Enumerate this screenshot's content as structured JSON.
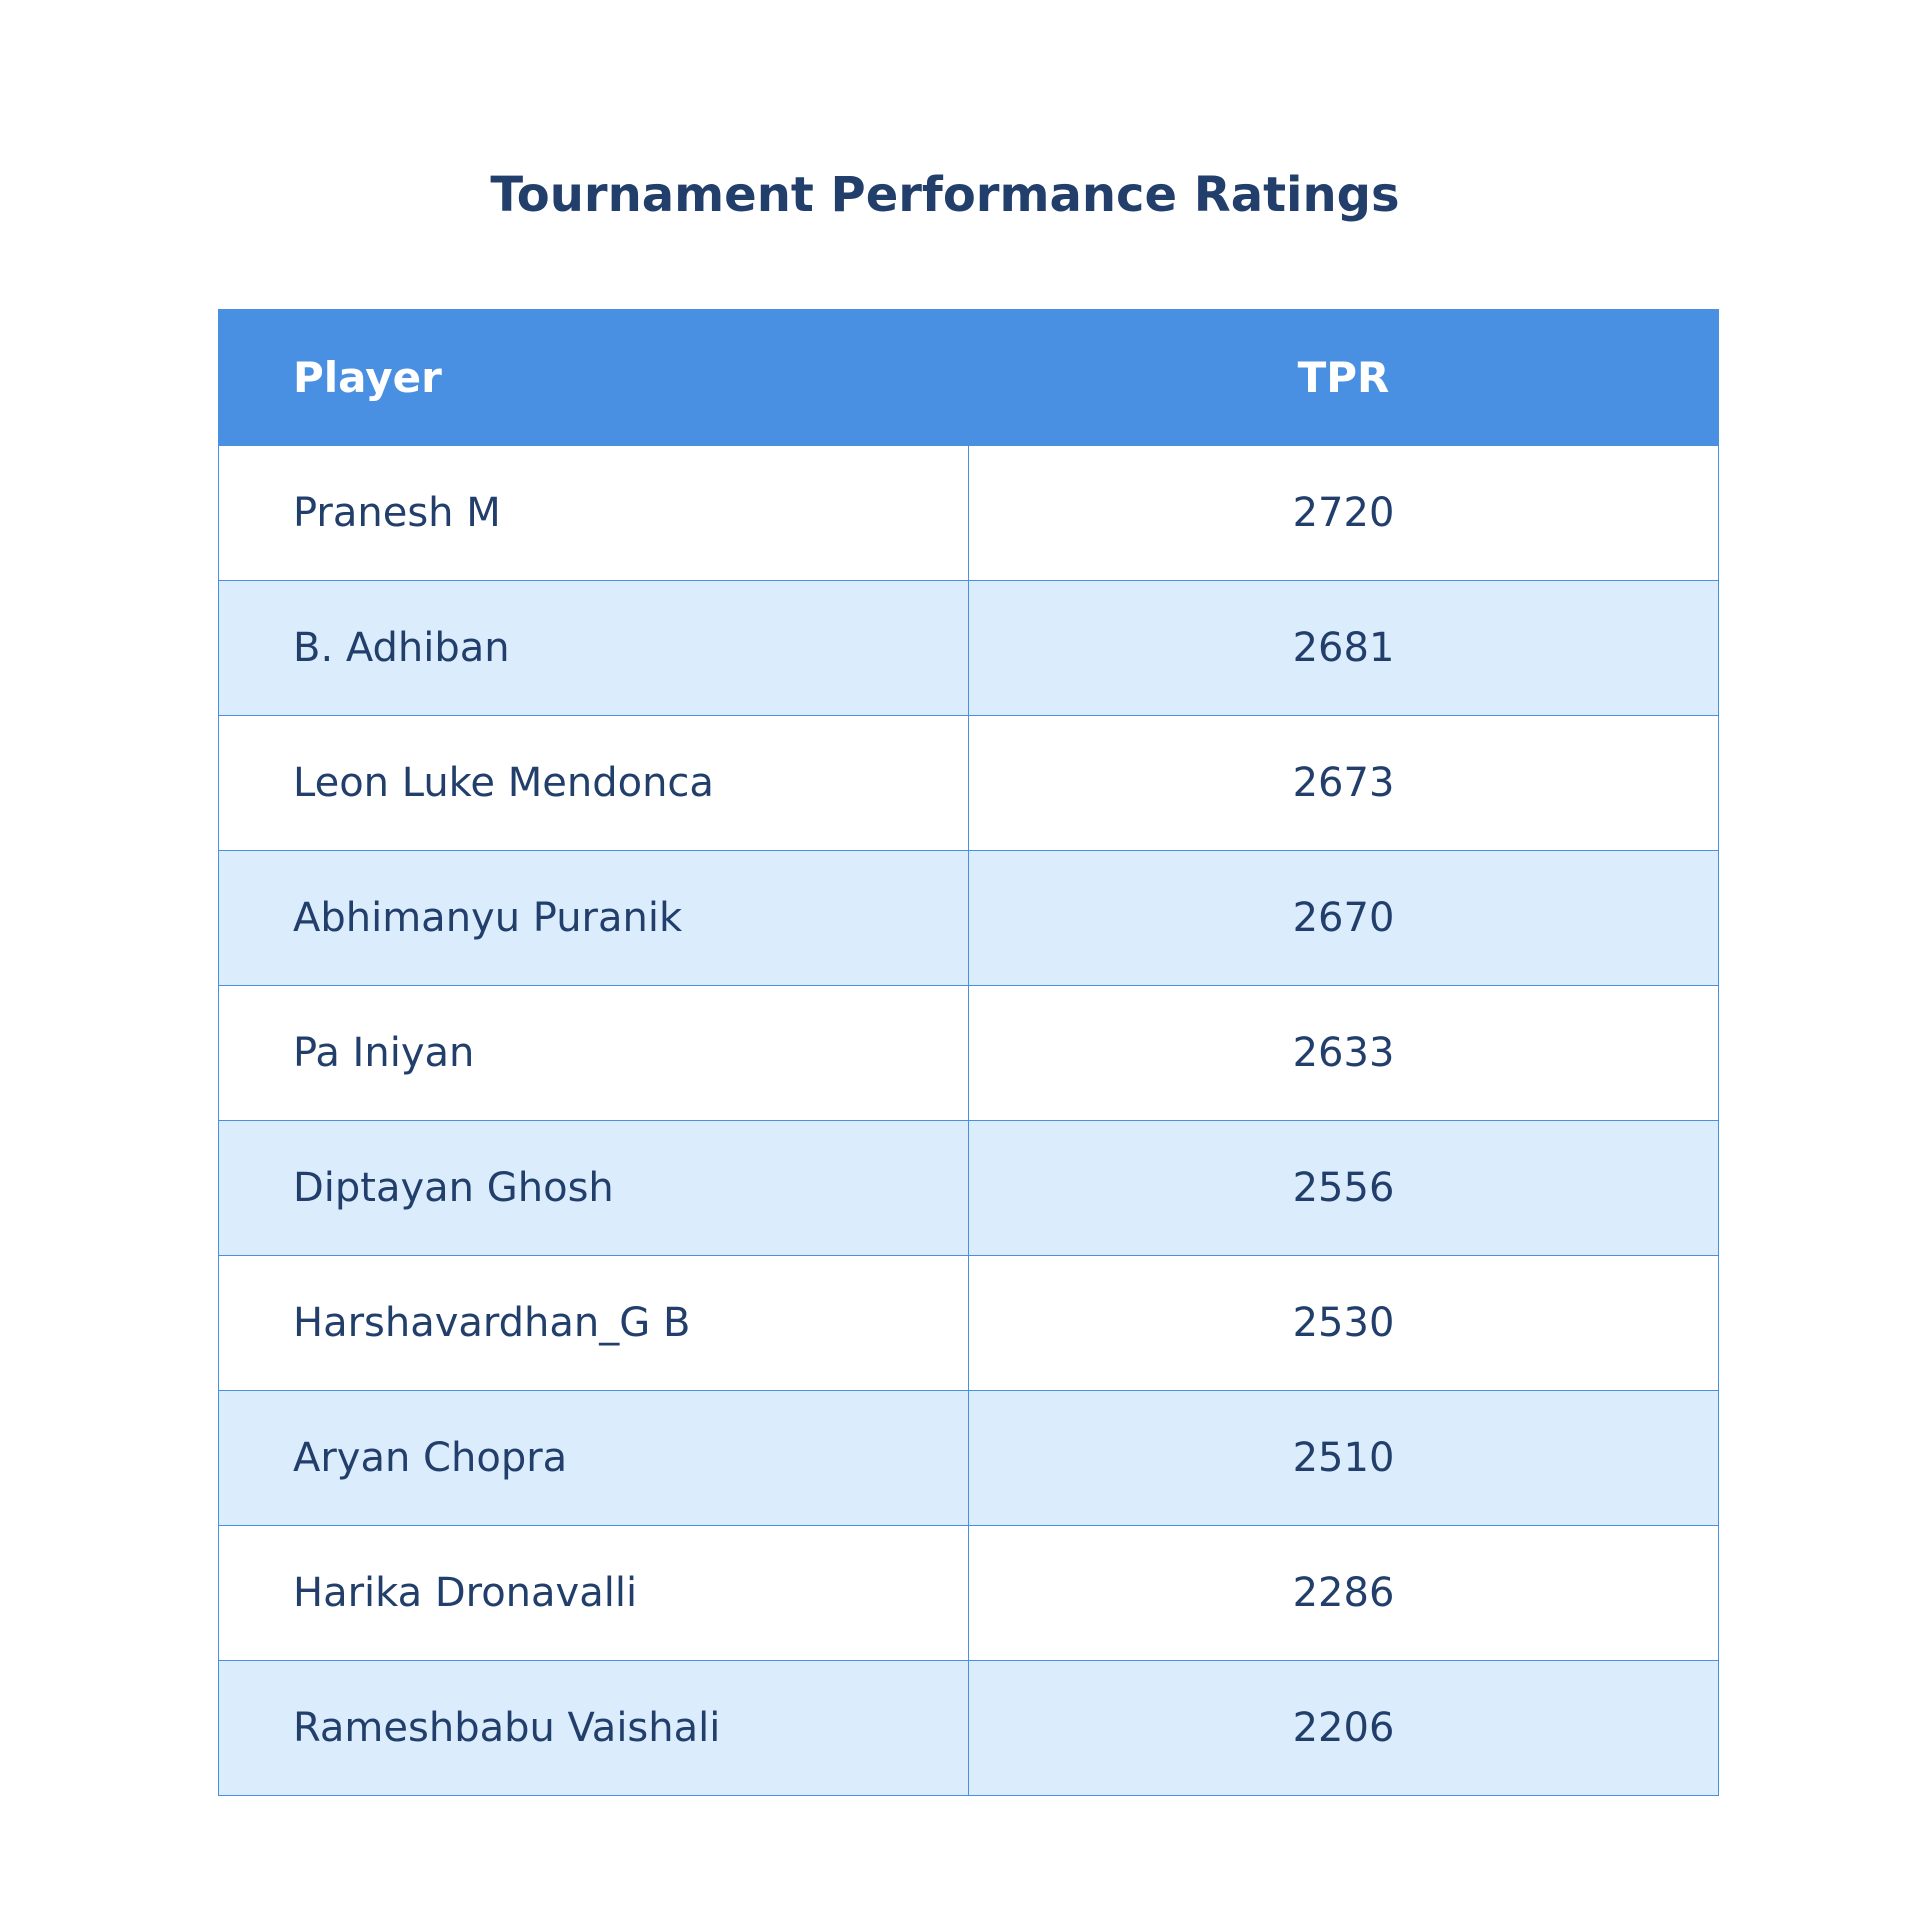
{
  "title": "Tournament Performance Ratings",
  "colors": {
    "header_bg": "#4a90e2",
    "header_text": "#ffffff",
    "row_alt_bg": "#dbecfd",
    "row_bg": "#ffffff",
    "text": "#223f6c",
    "border": "#4a90e2"
  },
  "chart_data": {
    "type": "table",
    "title": "Tournament Performance Ratings",
    "columns": [
      "Player",
      "TPR"
    ],
    "rows": [
      {
        "player": "Pranesh M",
        "tpr": "2720"
      },
      {
        "player": "B. Adhiban",
        "tpr": "2681"
      },
      {
        "player": "Leon Luke Mendonca",
        "tpr": "2673"
      },
      {
        "player": "Abhimanyu Puranik",
        "tpr": "2670"
      },
      {
        "player": "Pa Iniyan",
        "tpr": "2633"
      },
      {
        "player": "Diptayan Ghosh",
        "tpr": "2556"
      },
      {
        "player": "Harshavardhan_G B",
        "tpr": "2530"
      },
      {
        "player": "Aryan Chopra",
        "tpr": "2510"
      },
      {
        "player": "Harika Dronavalli",
        "tpr": "2286"
      },
      {
        "player": "Rameshbabu Vaishali",
        "tpr": "2206"
      }
    ]
  }
}
